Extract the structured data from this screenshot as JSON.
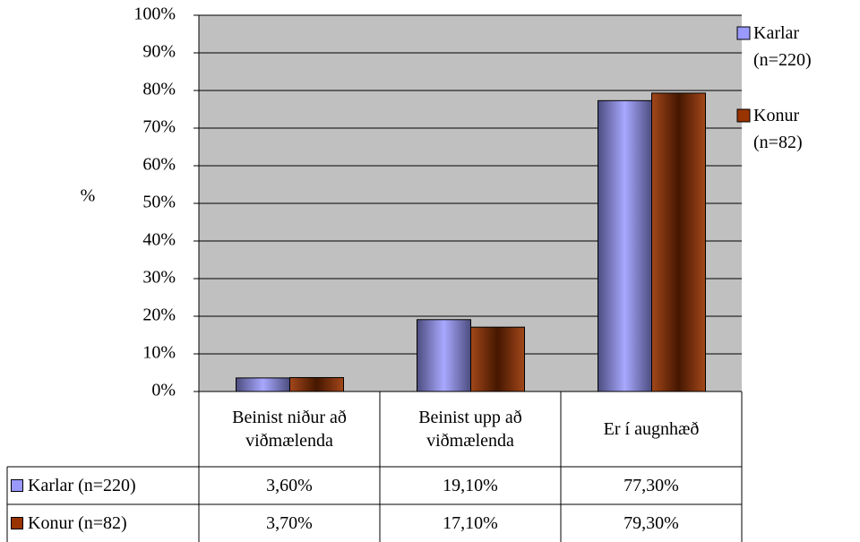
{
  "chart_data": {
    "type": "bar",
    "y_label": "%",
    "categories": [
      "Beinist niður að viðmælenda",
      "Beinist upp að viðmælenda",
      "Er í augnhæð"
    ],
    "series": [
      {
        "name": "Karlar (n=220)",
        "color": "#9999ff",
        "values": [
          3.6,
          19.1,
          77.3
        ],
        "value_labels": [
          "3,60%",
          "19,10%",
          "77,30%"
        ]
      },
      {
        "name": "Konur (n=82)",
        "color": "#993300",
        "values": [
          3.7,
          17.1,
          79.3
        ],
        "value_labels": [
          "3,70%",
          "17,10%",
          "79,30%"
        ]
      }
    ],
    "ylim": [
      0,
      100
    ],
    "yticks": [
      {
        "value": 0,
        "label": "0%"
      },
      {
        "value": 10,
        "label": "10%"
      },
      {
        "value": 20,
        "label": "20%"
      },
      {
        "value": 30,
        "label": "30%"
      },
      {
        "value": 40,
        "label": "40%"
      },
      {
        "value": 50,
        "label": "50%"
      },
      {
        "value": 60,
        "label": "60%"
      },
      {
        "value": 70,
        "label": "70%"
      },
      {
        "value": 80,
        "label": "80%"
      },
      {
        "value": 90,
        "label": "90%"
      },
      {
        "value": 100,
        "label": "100%"
      }
    ],
    "grid": true,
    "legend": "right"
  }
}
